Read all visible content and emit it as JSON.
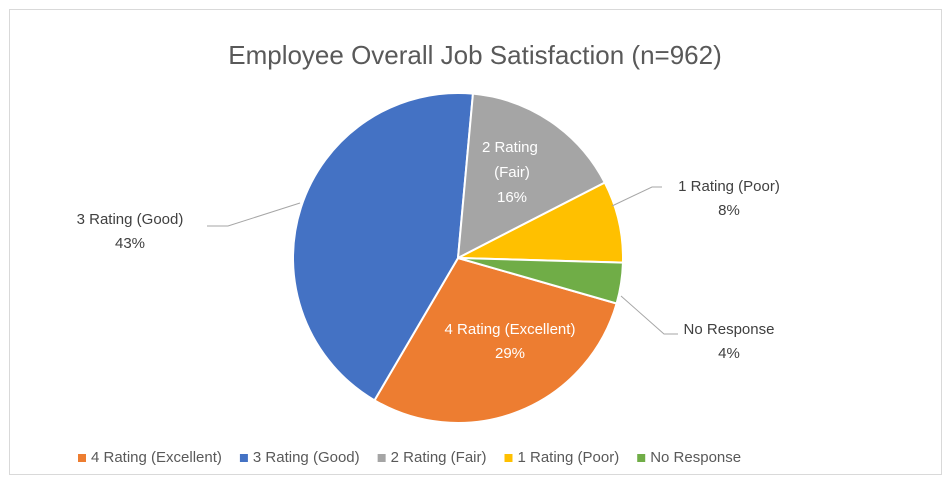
{
  "chart_data": {
    "type": "pie",
    "title": "Employee Overall Job Satisfaction (n=962)",
    "categories": [
      "4 Rating (Excellent)",
      "3 Rating (Good)",
      "2 Rating (Fair)",
      "1 Rating (Poor)",
      "No Response"
    ],
    "values": [
      29,
      43,
      16,
      8,
      4
    ],
    "value_labels": [
      "29%",
      "43%",
      "16%",
      "8%",
      "4%"
    ],
    "colors": [
      "#ed7d31",
      "#4472c4",
      "#a5a5a5",
      "#ffc000",
      "#70ad47"
    ],
    "legend": "bottom"
  }
}
